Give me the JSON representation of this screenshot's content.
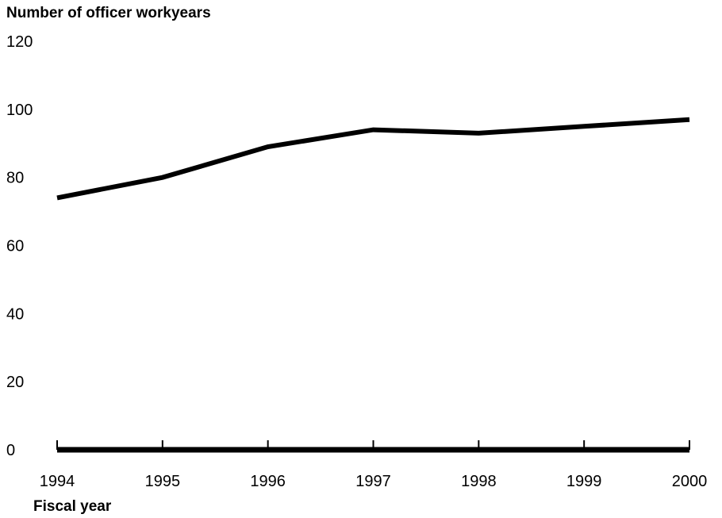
{
  "chart_data": {
    "type": "line",
    "ylabel": "Number of officer workyears",
    "xlabel": "Fiscal year",
    "categories": [
      "1994",
      "1995",
      "1996",
      "1997",
      "1998",
      "1999",
      "2000"
    ],
    "series": [
      {
        "values": [
          74,
          80,
          89,
          94,
          93,
          95,
          97
        ]
      }
    ],
    "ylim": [
      0,
      120
    ],
    "yticks": [
      0,
      20,
      40,
      60,
      80,
      100,
      120
    ],
    "grid": false,
    "line_color": "#000000"
  }
}
